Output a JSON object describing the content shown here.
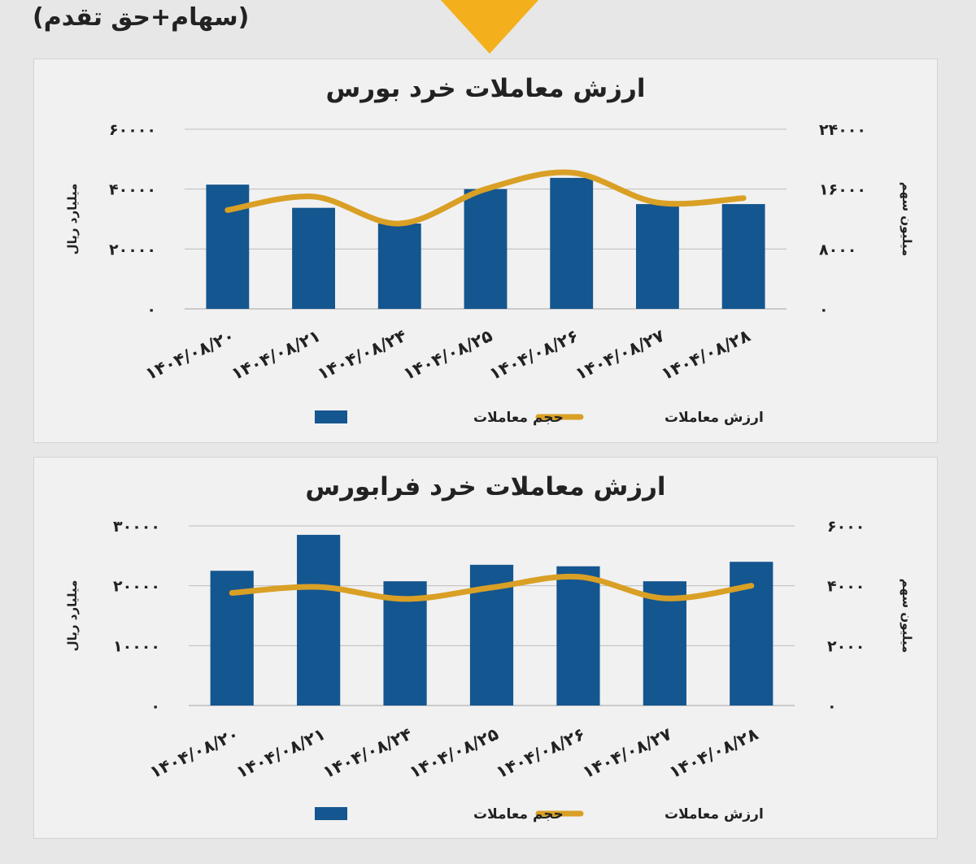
{
  "header": {
    "text": "(سهام+حق تقدم)"
  },
  "colors": {
    "bar": "#14568f",
    "line": "#d9a025",
    "accent": "#f4b01c",
    "grid": "#bdbdbd"
  },
  "chart_data": [
    {
      "type": "bar",
      "title": "ارزش معاملات خرد بورس",
      "categories": [
        "۱۴۰۴/۰۸/۲۰",
        "۱۴۰۴/۰۸/۲۱",
        "۱۴۰۴/۰۸/۲۴",
        "۱۴۰۴/۰۸/۲۵",
        "۱۴۰۴/۰۸/۲۶",
        "۱۴۰۴/۰۸/۲۷",
        "۱۴۰۴/۰۸/۲۸"
      ],
      "left_axis": {
        "label": "میلیارد ریال",
        "ticks": [
          "۰",
          "۲۰۰۰۰",
          "۴۰۰۰۰",
          "۶۰۰۰۰"
        ],
        "range": [
          0,
          60000
        ]
      },
      "right_axis": {
        "label": "میلیون سهم",
        "ticks": [
          "۰",
          "۸۰۰۰",
          "۱۶۰۰۰",
          "۲۴۰۰۰"
        ],
        "range": [
          0,
          24000
        ]
      },
      "series": [
        {
          "name": "ارزش معاملات",
          "kind": "line",
          "axis": "left",
          "values": [
            33000,
            37500,
            28500,
            40000,
            45500,
            35500,
            37000
          ]
        },
        {
          "name": "حجم معاملات",
          "kind": "bar",
          "axis": "right",
          "values": [
            16600,
            13500,
            11400,
            16000,
            17500,
            14000,
            14000
          ]
        }
      ],
      "grid": true,
      "legend_position": "bottom"
    },
    {
      "type": "bar",
      "title": "ارزش معاملات خرد فرابورس",
      "categories": [
        "۱۴۰۴/۰۸/۲۰",
        "۱۴۰۴/۰۸/۲۱",
        "۱۴۰۴/۰۸/۲۴",
        "۱۴۰۴/۰۸/۲۵",
        "۱۴۰۴/۰۸/۲۶",
        "۱۴۰۴/۰۸/۲۷",
        "۱۴۰۴/۰۸/۲۸"
      ],
      "left_axis": {
        "label": "میلیارد ریال",
        "ticks": [
          "۰",
          "۱۰۰۰۰",
          "۲۰۰۰۰",
          "۳۰۰۰۰"
        ],
        "range": [
          0,
          30000
        ]
      },
      "right_axis": {
        "label": "میلیون سهم",
        "ticks": [
          "۰",
          "۲۰۰۰",
          "۴۰۰۰",
          "۶۰۰۰"
        ],
        "range": [
          0,
          6000
        ]
      },
      "series": [
        {
          "name": "ارزش معاملات",
          "kind": "line",
          "axis": "left",
          "values": [
            18800,
            19800,
            17800,
            19700,
            21500,
            17900,
            20000
          ]
        },
        {
          "name": "حجم معاملات",
          "kind": "bar",
          "axis": "right",
          "values": [
            4500,
            5700,
            4150,
            4700,
            4650,
            4150,
            4800
          ]
        }
      ],
      "grid": true,
      "legend_position": "bottom"
    }
  ]
}
